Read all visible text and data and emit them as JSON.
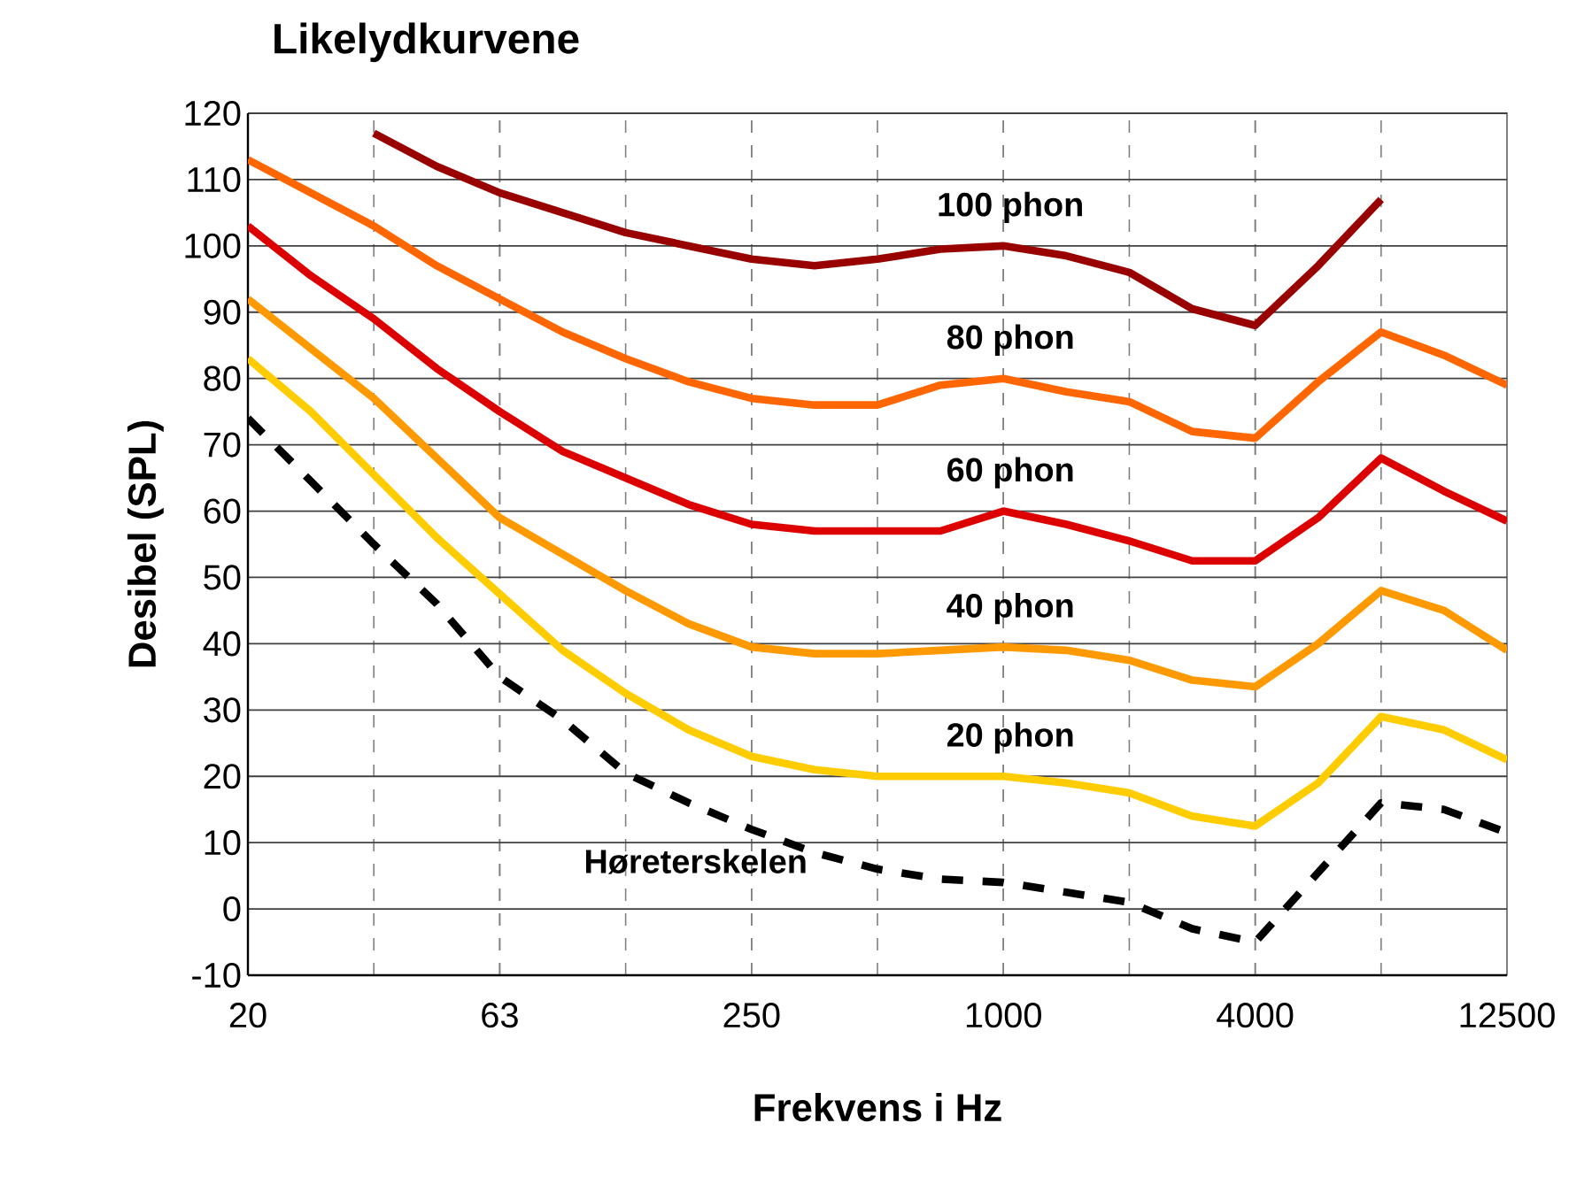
{
  "chart_data": {
    "type": "line",
    "title": "Likelydkurvene",
    "xlabel": "Frekvens i Hz",
    "ylabel": "Desibel (SPL)",
    "categories": [
      "20",
      null,
      null,
      null,
      "63",
      null,
      null,
      null,
      "250",
      null,
      null,
      null,
      "1000",
      null,
      null,
      null,
      "4000",
      null,
      null,
      null,
      "12500"
    ],
    "ylim": [
      -10,
      120
    ],
    "yticks": [
      -10,
      0,
      10,
      20,
      30,
      40,
      50,
      60,
      70,
      80,
      90,
      100,
      110,
      120
    ],
    "grid": true,
    "marker": "none",
    "line_style": "solid",
    "series": [
      {
        "name": "100 phon",
        "color": "#990000",
        "values": [
          null,
          null,
          117,
          112,
          108,
          105,
          102,
          100,
          98,
          97,
          98,
          99.5,
          100,
          98.5,
          96,
          90.5,
          88,
          97,
          107,
          null,
          null
        ]
      },
      {
        "name": "80 phon",
        "color": "#ff6600",
        "values": [
          113,
          108,
          103,
          97,
          92,
          87,
          83,
          79.5,
          77,
          76,
          76,
          79,
          80,
          78,
          76.5,
          72,
          71,
          79.5,
          87,
          83.5,
          79
        ]
      },
      {
        "name": "60 phon",
        "color": "#dd0000",
        "values": [
          103,
          95.5,
          89,
          81.5,
          75,
          69,
          65,
          61,
          58,
          57,
          57,
          57,
          60,
          58,
          55.5,
          52.5,
          52.5,
          59,
          68,
          63,
          58.5
        ]
      },
      {
        "name": "40 phon",
        "color": "#ff9900",
        "values": [
          92,
          84.5,
          77,
          68,
          59,
          53.5,
          48,
          43,
          39.5,
          38.5,
          38.5,
          39,
          39.5,
          39,
          37.5,
          34.5,
          33.5,
          40,
          48,
          45,
          39
        ]
      },
      {
        "name": "20 phon",
        "color": "#ffcc00",
        "values": [
          83,
          75,
          65.5,
          56,
          47.5,
          39,
          32.5,
          27,
          23,
          21,
          20,
          20,
          20,
          19,
          17.5,
          14,
          12.5,
          19,
          29,
          27,
          22.5
        ]
      },
      {
        "name": "Høreterskelen",
        "color": "#000000",
        "line_style": "dashed",
        "values": [
          74,
          64.5,
          55,
          46,
          35,
          28.5,
          20.5,
          16,
          12,
          8.5,
          6,
          4.5,
          4,
          2.5,
          1,
          -3,
          -5,
          5.5,
          16,
          15,
          11.5
        ]
      }
    ]
  }
}
